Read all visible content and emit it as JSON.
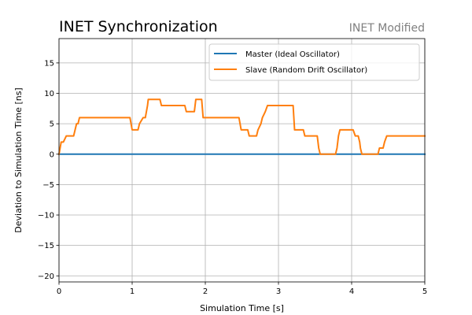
{
  "chart_data": {
    "type": "line",
    "title": "INET Synchronization",
    "subtitle": "INET Modified",
    "xlabel": "Simulation Time [s]",
    "ylabel": "Deviation to Simulation Time [ns]",
    "xlim": [
      0,
      5
    ],
    "ylim": [
      -21,
      19
    ],
    "xticks": [
      0,
      1,
      2,
      3,
      4,
      5
    ],
    "yticks": [
      -20,
      -15,
      -10,
      -5,
      0,
      5,
      10,
      15
    ],
    "xtick_labels": [
      "0",
      "1",
      "2",
      "3",
      "4",
      "5"
    ],
    "ytick_labels": [
      "−20",
      "−15",
      "−10",
      "−5",
      "0",
      "5",
      "10",
      "15"
    ],
    "grid": true,
    "legend_position": "top-right",
    "series": [
      {
        "name": "Master (Ideal Oscillator)",
        "color": "#1f77b4",
        "x": [
          0,
          5
        ],
        "y": [
          0,
          0
        ]
      },
      {
        "name": "Slave (Random Drift Oscillator)",
        "color": "#ff7f0e",
        "x": [
          0,
          0.03,
          0.06,
          0.1,
          0.2,
          0.22,
          0.24,
          0.26,
          0.28,
          0.97,
          1.0,
          1.08,
          1.1,
          1.15,
          1.18,
          1.21,
          1.22,
          1.38,
          1.4,
          1.72,
          1.74,
          1.85,
          1.87,
          1.95,
          1.97,
          2.46,
          2.49,
          2.58,
          2.6,
          2.7,
          2.72,
          2.76,
          2.78,
          2.82,
          2.85,
          3.2,
          3.22,
          3.34,
          3.36,
          3.53,
          3.55,
          3.57,
          3.78,
          3.8,
          3.82,
          3.84,
          4.02,
          4.05,
          4.09,
          4.11,
          4.12,
          4.14,
          4.36,
          4.38,
          4.43,
          4.45,
          4.48,
          5.0
        ],
        "y": [
          0,
          2,
          2,
          3,
          3,
          4,
          5,
          5,
          6,
          6,
          4,
          4,
          5,
          6,
          6,
          8,
          9,
          9,
          8,
          8,
          7,
          7,
          9,
          9,
          6,
          6,
          4,
          4,
          3,
          3,
          4,
          5,
          6,
          7,
          8,
          8,
          4,
          4,
          3,
          3,
          1,
          0,
          0,
          1,
          3,
          4,
          4,
          3,
          3,
          2,
          1,
          0,
          0,
          1,
          1,
          2,
          3,
          3
        ]
      }
    ]
  }
}
